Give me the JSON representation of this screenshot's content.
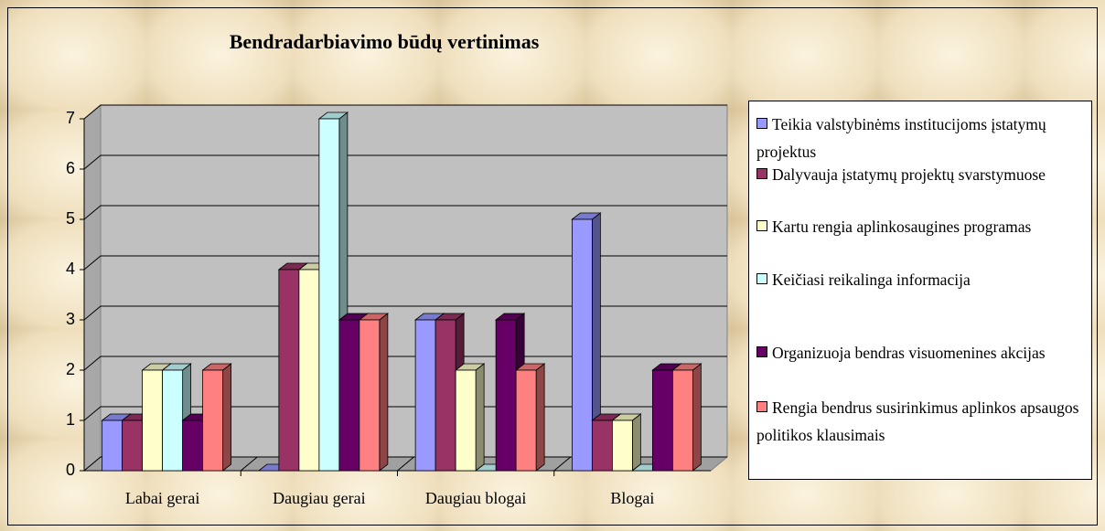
{
  "chart_data": {
    "type": "bar3d",
    "title": "Bendradarbiavimo būdų vertinimas",
    "categories": [
      "Labai gerai",
      "Daugiau gerai",
      "Daugiau blogai",
      "Blogai"
    ],
    "series": [
      {
        "name": "Teikia valstybinėms institucijoms įstatymų projektus",
        "color": "#9999ff",
        "values": [
          1,
          0,
          3,
          5
        ]
      },
      {
        "name": "Dalyvauja įstatymų projektų svarstymuose",
        "color": "#993366",
        "values": [
          1,
          4,
          3,
          1
        ]
      },
      {
        "name": "Kartu rengia aplinkosaugines programas",
        "color": "#ffffcc",
        "values": [
          2,
          4,
          2,
          1
        ]
      },
      {
        "name": "Keičiasi reikalinga informacija",
        "color": "#ccffff",
        "values": [
          2,
          7,
          0,
          0
        ]
      },
      {
        "name": "Organizuoja bendras visuomenines akcijas",
        "color": "#660066",
        "values": [
          1,
          3,
          3,
          2
        ]
      },
      {
        "name": "Rengia bendrus susirinkimus aplinkos apsaugos politikos klausimais",
        "color": "#ff8080",
        "values": [
          2,
          3,
          2,
          2
        ]
      }
    ],
    "ylim": [
      0,
      7
    ],
    "yticks": [
      0,
      1,
      2,
      3,
      4,
      5,
      6,
      7
    ],
    "grid": true,
    "legend": "right"
  }
}
